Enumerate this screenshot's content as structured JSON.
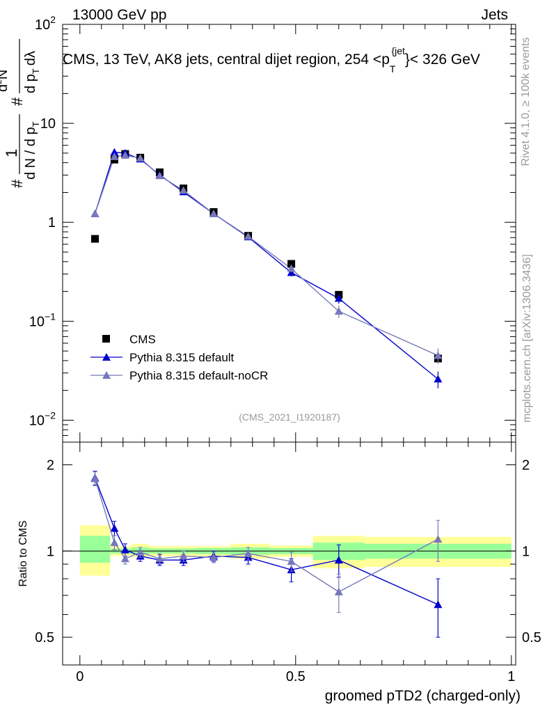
{
  "header": {
    "energy_label": "13000 GeV pp",
    "category_label": "Jets"
  },
  "side_labels": {
    "rivet": "Rivet 4.1.0, ≥ 100k events",
    "mcplots": "mcplots.cern.ch [arXiv:1306.3436]"
  },
  "chart_data": [
    {
      "type": "scatter",
      "panel": "main",
      "title": "CMS, 13 TeV, AK8 jets, central dijet region, 254 < p_T^{jet} < 326 GeV",
      "title_parts": {
        "prefix": "CMS, 13 TeV, AK8 jets, central dijet region, 254 <p",
        "sub": "T",
        "sup": "{jet",
        "mid": "}",
        "suffix": "< 326 GeV"
      },
      "ylabel": "1/(dN/dp_T) d²N/(dp_T dλ)",
      "ylabel_parts": {
        "hash": "#",
        "one": "1",
        "den": "d N / d p",
        "T": "T",
        "num_top": "d",
        "num_sup": "2",
        "num_N": "N",
        "num_den": "d p",
        "num_dlambda": "dλ"
      },
      "yscale": "log",
      "ylim": [
        0.006,
        100
      ],
      "xlim": [
        -0.04,
        1.01
      ],
      "y_ticks": [
        {
          "value": 100,
          "base": "10",
          "exp": "2"
        },
        {
          "value": 10,
          "base": "10",
          "exp": ""
        },
        {
          "value": 1,
          "base": "1",
          "exp": ""
        },
        {
          "value": 0.1,
          "base": "10",
          "exp": "−1"
        },
        {
          "value": 0.01,
          "base": "10",
          "exp": "−2"
        }
      ],
      "watermark": "(CMS_2021_I1920187)",
      "legend": {
        "placement": "lower-left",
        "entries": [
          "CMS",
          "Pythia 8.315 default",
          "Pythia 8.315 default-noCR"
        ]
      },
      "series": [
        {
          "name": "CMS",
          "color": "#000000",
          "marker": "square",
          "x": [
            0.035,
            0.08,
            0.105,
            0.14,
            0.185,
            0.24,
            0.31,
            0.39,
            0.49,
            0.6,
            0.83
          ],
          "y": [
            0.68,
            4.3,
            4.9,
            4.5,
            3.2,
            2.2,
            1.27,
            0.73,
            0.38,
            0.185,
            0.042
          ],
          "xerr": [
            0.035,
            0.01,
            0.015,
            0.02,
            0.025,
            0.03,
            0.04,
            0.04,
            0.06,
            0.06,
            0.17
          ]
        },
        {
          "name": "Pythia 8.315 default",
          "color": "#0000cc",
          "marker": "triangle",
          "x": [
            0.035,
            0.08,
            0.105,
            0.14,
            0.185,
            0.24,
            0.31,
            0.39,
            0.49,
            0.6,
            0.83
          ],
          "y": [
            1.22,
            5.1,
            5.0,
            4.35,
            3.0,
            2.03,
            1.22,
            0.71,
            0.31,
            0.17,
            0.026
          ],
          "yerr": [
            0.05,
            0.15,
            0.12,
            0.1,
            0.07,
            0.05,
            0.03,
            0.03,
            0.025,
            0.02,
            0.005
          ]
        },
        {
          "name": "Pythia 8.315 default-noCR",
          "color": "#7777bb",
          "marker": "triangle",
          "x": [
            0.035,
            0.08,
            0.105,
            0.14,
            0.185,
            0.24,
            0.31,
            0.39,
            0.49,
            0.6,
            0.83
          ],
          "y": [
            1.22,
            4.6,
            4.75,
            4.45,
            2.95,
            2.1,
            1.22,
            0.72,
            0.34,
            0.126,
            0.045
          ],
          "yerr": [
            0.05,
            0.15,
            0.12,
            0.1,
            0.07,
            0.05,
            0.03,
            0.03,
            0.025,
            0.018,
            0.008
          ]
        }
      ]
    },
    {
      "type": "scatter",
      "panel": "ratio",
      "ylabel": "Ratio to CMS",
      "xlabel": "groomed pTD2 (charged-only)",
      "ylim": [
        0.4,
        2.4
      ],
      "xlim": [
        -0.04,
        1.01
      ],
      "x_ticks": [
        {
          "value": 0,
          "label": "0"
        },
        {
          "value": 0.5,
          "label": "0.5"
        },
        {
          "value": 1,
          "label": "1"
        }
      ],
      "y_ticks": [
        {
          "value": 2,
          "label": "2"
        },
        {
          "value": 1,
          "label": "1"
        },
        {
          "value": 0.5,
          "label": "0.5"
        }
      ],
      "reference_line": 1.0,
      "uncertainty_bands": {
        "colors": {
          "inner": "#99ff99",
          "outer": "#ffff99"
        },
        "bins": [
          {
            "lo": 0.0,
            "hi": 0.07,
            "inner": [
              0.91,
              1.13
            ],
            "outer": [
              0.82,
              1.23
            ]
          },
          {
            "lo": 0.07,
            "hi": 0.09,
            "inner": [
              0.98,
              1.02
            ],
            "outer": [
              0.96,
              1.04
            ]
          },
          {
            "lo": 0.09,
            "hi": 0.12,
            "inner": [
              0.98,
              1.02
            ],
            "outer": [
              0.96,
              1.04
            ]
          },
          {
            "lo": 0.12,
            "hi": 0.16,
            "inner": [
              0.975,
              1.03
            ],
            "outer": [
              0.95,
              1.06
            ]
          },
          {
            "lo": 0.16,
            "hi": 0.21,
            "inner": [
              0.98,
              1.02
            ],
            "outer": [
              0.96,
              1.04
            ]
          },
          {
            "lo": 0.21,
            "hi": 0.27,
            "inner": [
              0.98,
              1.02
            ],
            "outer": [
              0.96,
              1.04
            ]
          },
          {
            "lo": 0.27,
            "hi": 0.35,
            "inner": [
              0.975,
              1.025
            ],
            "outer": [
              0.96,
              1.04
            ]
          },
          {
            "lo": 0.35,
            "hi": 0.44,
            "inner": [
              0.97,
              1.03
            ],
            "outer": [
              0.94,
              1.06
            ]
          },
          {
            "lo": 0.44,
            "hi": 0.54,
            "inner": [
              0.975,
              1.025
            ],
            "outer": [
              0.955,
              1.045
            ]
          },
          {
            "lo": 0.54,
            "hi": 0.66,
            "inner": [
              0.93,
              1.07
            ],
            "outer": [
              0.87,
              1.13
            ]
          },
          {
            "lo": 0.66,
            "hi": 1.0,
            "inner": [
              0.94,
              1.06
            ],
            "outer": [
              0.88,
              1.12
            ]
          }
        ]
      },
      "series": [
        {
          "name": "Pythia 8.315 default",
          "color": "#0000cc",
          "marker": "triangle",
          "x": [
            0.035,
            0.08,
            0.105,
            0.14,
            0.185,
            0.24,
            0.31,
            0.39,
            0.49,
            0.6,
            0.83
          ],
          "y": [
            1.8,
            1.2,
            1.01,
            0.96,
            0.93,
            0.93,
            0.96,
            0.95,
            0.86,
            0.93,
            0.65
          ],
          "yerr": [
            0.1,
            0.07,
            0.05,
            0.04,
            0.04,
            0.04,
            0.04,
            0.05,
            0.08,
            0.12,
            0.15
          ]
        },
        {
          "name": "Pythia 8.315 default-noCR",
          "color": "#7777bb",
          "marker": "triangle",
          "x": [
            0.035,
            0.08,
            0.105,
            0.14,
            0.185,
            0.24,
            0.31,
            0.39,
            0.49,
            0.6,
            0.83
          ],
          "y": [
            1.79,
            1.07,
            0.94,
            0.99,
            0.94,
            0.96,
            0.95,
            0.98,
            0.92,
            0.72,
            1.1
          ],
          "yerr": [
            0.1,
            0.06,
            0.04,
            0.04,
            0.04,
            0.04,
            0.04,
            0.05,
            0.07,
            0.11,
            0.18
          ]
        }
      ]
    }
  ]
}
